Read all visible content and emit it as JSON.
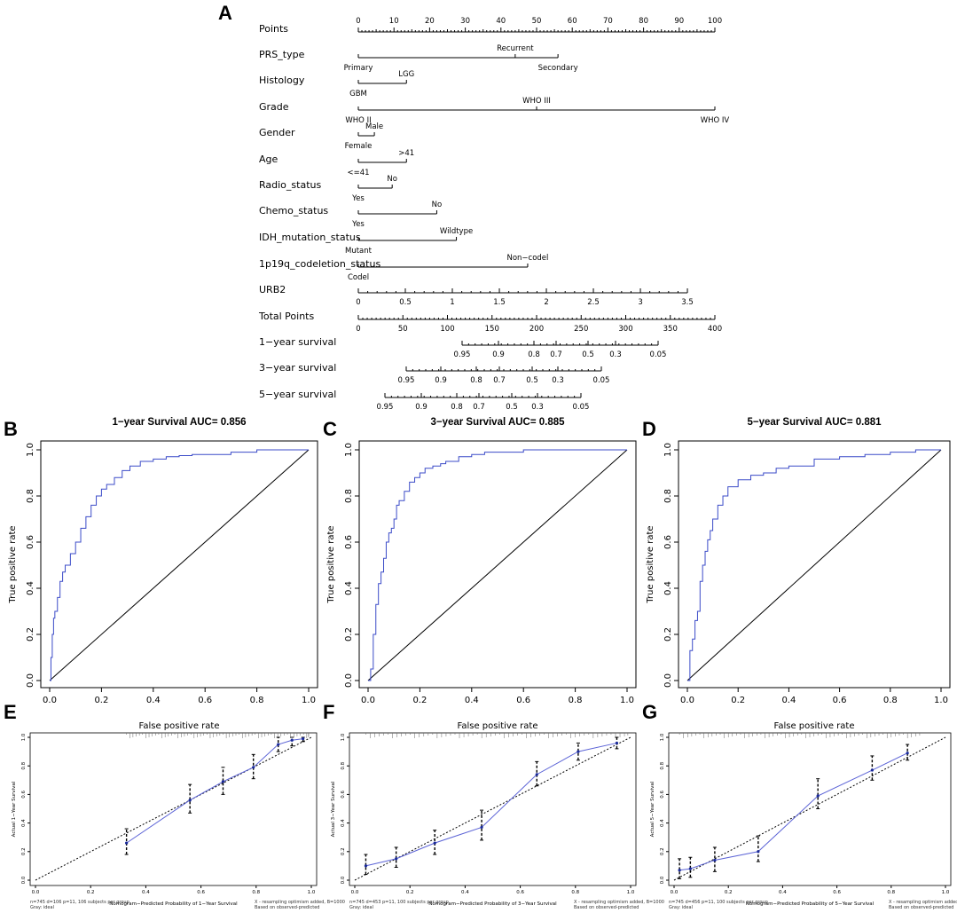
{
  "panel_letters": [
    "A",
    "B",
    "C",
    "D",
    "E",
    "F",
    "G"
  ],
  "nomogram": {
    "rows": [
      {
        "label": "Points",
        "ticks": [
          "0",
          "10",
          "20",
          "30",
          "40",
          "50",
          "60",
          "70",
          "80",
          "90",
          "100"
        ]
      },
      {
        "label": "PRS_type",
        "above": [
          "Recurrent"
        ],
        "below": [
          "Primary",
          "Secondary"
        ]
      },
      {
        "label": "Histology",
        "above": [
          "LGG"
        ],
        "below": [
          "GBM"
        ]
      },
      {
        "label": "Grade",
        "above": [
          "WHO III"
        ],
        "below": [
          "WHO II",
          "WHO IV"
        ]
      },
      {
        "label": "Gender",
        "above": [
          "Male"
        ],
        "below": [
          "Female"
        ]
      },
      {
        "label": "Age",
        "above": [
          ">41"
        ],
        "below": [
          "<=41"
        ]
      },
      {
        "label": "Radio_status",
        "above": [
          "No"
        ],
        "below": [
          "Yes"
        ]
      },
      {
        "label": "Chemo_status",
        "above": [
          "No"
        ],
        "below": [
          "Yes"
        ]
      },
      {
        "label": "IDH_mutation_status",
        "above": [
          "Wildtype"
        ],
        "below": [
          "Mutant"
        ]
      },
      {
        "label": "1p19q_codeletion_status",
        "above": [
          "Non−codel"
        ],
        "below": [
          "Codel"
        ]
      },
      {
        "label": "URB2",
        "ticks": [
          "0",
          "0.5",
          "1",
          "1.5",
          "2",
          "2.5",
          "3",
          "3.5"
        ]
      },
      {
        "label": "Total Points",
        "ticks": [
          "0",
          "50",
          "100",
          "150",
          "200",
          "250",
          "300",
          "350",
          "400"
        ]
      },
      {
        "label": "1−year survival",
        "ticks": [
          "0.95",
          "0.9",
          "0.8",
          "0.7",
          "0.5",
          "0.3",
          "0.05"
        ]
      },
      {
        "label": "3−year survival",
        "ticks": [
          "0.95",
          "0.9",
          "0.8",
          "0.7",
          "0.5",
          "0.3",
          "0.05"
        ]
      },
      {
        "label": "5−year survival",
        "ticks": [
          "0.95",
          "0.9",
          "0.8",
          "0.7",
          "0.5",
          "0.3",
          "0.05"
        ]
      }
    ]
  },
  "roc_common": {
    "xlabel": "False positive rate",
    "ylabel": "True positive rate",
    "ticks": [
      "0.0",
      "0.2",
      "0.4",
      "0.6",
      "0.8",
      "1.0"
    ]
  },
  "cal_common": {
    "xticks": [
      "0.0",
      "0.2",
      "0.4",
      "0.6",
      "0.8",
      "1.0"
    ],
    "yticks": [
      "0.0",
      "0.2",
      "0.4",
      "0.6",
      "0.8",
      "1.0"
    ],
    "right_note_1": "X - resampling optimism added, B=1000",
    "right_note_2": "Based on observed-predicted",
    "left_note_2": "Gray: ideal"
  },
  "chart_data": [
    {
      "type": "line",
      "panel": "B",
      "title": "1−year Survival AUC= 0.856",
      "xlabel": "False positive rate",
      "ylabel": "True positive rate",
      "xlim": [
        0,
        1
      ],
      "ylim": [
        0,
        1
      ],
      "x": [
        0,
        0.005,
        0.01,
        0.015,
        0.02,
        0.03,
        0.04,
        0.05,
        0.06,
        0.08,
        0.1,
        0.12,
        0.14,
        0.16,
        0.18,
        0.2,
        0.22,
        0.25,
        0.28,
        0.31,
        0.35,
        0.4,
        0.45,
        0.5,
        0.55,
        0.6,
        0.7,
        0.8,
        0.9,
        1.0
      ],
      "y": [
        0,
        0.1,
        0.2,
        0.27,
        0.3,
        0.36,
        0.43,
        0.47,
        0.5,
        0.55,
        0.6,
        0.66,
        0.71,
        0.76,
        0.8,
        0.83,
        0.85,
        0.88,
        0.91,
        0.93,
        0.95,
        0.96,
        0.97,
        0.975,
        0.98,
        0.98,
        0.99,
        1.0,
        1.0,
        1.0
      ]
    },
    {
      "type": "line",
      "panel": "C",
      "title": "3−year Survival AUC= 0.885",
      "xlabel": "False positive rate",
      "ylabel": "True positive rate",
      "xlim": [
        0,
        1
      ],
      "ylim": [
        0,
        1
      ],
      "x": [
        0,
        0.01,
        0.02,
        0.03,
        0.04,
        0.05,
        0.06,
        0.07,
        0.08,
        0.09,
        0.1,
        0.11,
        0.12,
        0.14,
        0.16,
        0.18,
        0.2,
        0.22,
        0.25,
        0.28,
        0.3,
        0.35,
        0.4,
        0.45,
        0.5,
        0.6,
        0.7,
        0.8,
        0.9,
        1.0
      ],
      "y": [
        0,
        0.05,
        0.2,
        0.33,
        0.42,
        0.47,
        0.53,
        0.6,
        0.64,
        0.66,
        0.7,
        0.76,
        0.78,
        0.82,
        0.86,
        0.88,
        0.9,
        0.92,
        0.93,
        0.94,
        0.95,
        0.97,
        0.98,
        0.99,
        0.99,
        1.0,
        1.0,
        1.0,
        1.0,
        1.0
      ]
    },
    {
      "type": "line",
      "panel": "D",
      "title": "5−year Survival AUC= 0.881",
      "xlabel": "False positive rate",
      "ylabel": "True positive rate",
      "xlim": [
        0,
        1
      ],
      "ylim": [
        0,
        1
      ],
      "x": [
        0,
        0.01,
        0.02,
        0.03,
        0.04,
        0.05,
        0.06,
        0.07,
        0.08,
        0.09,
        0.1,
        0.12,
        0.14,
        0.16,
        0.2,
        0.25,
        0.3,
        0.35,
        0.4,
        0.5,
        0.6,
        0.7,
        0.8,
        0.9,
        1.0
      ],
      "y": [
        0,
        0.13,
        0.18,
        0.26,
        0.3,
        0.43,
        0.5,
        0.56,
        0.61,
        0.65,
        0.7,
        0.76,
        0.8,
        0.84,
        0.87,
        0.89,
        0.9,
        0.92,
        0.93,
        0.96,
        0.97,
        0.98,
        0.99,
        1.0,
        1.0
      ]
    },
    {
      "type": "line",
      "panel": "E",
      "xlabel": "Nomogram−Predicted Probability of 1−Year Survival",
      "ylabel": "Actual 1−Year Survival",
      "xlim": [
        0,
        1
      ],
      "ylim": [
        0,
        1
      ],
      "left_note": "n=745 d=106 p=11, 106 subjects per group",
      "x": [
        0.33,
        0.56,
        0.68,
        0.79,
        0.88,
        0.93,
        0.97
      ],
      "y": [
        0.26,
        0.56,
        0.69,
        0.79,
        0.95,
        0.98,
        0.99
      ],
      "lower": [
        0.18,
        0.47,
        0.6,
        0.71,
        0.9,
        0.94,
        0.97
      ],
      "upper": [
        0.36,
        0.67,
        0.79,
        0.88,
        1.0,
        1.0,
        1.0
      ]
    },
    {
      "type": "line",
      "panel": "F",
      "xlabel": "Nomogram−Predicted Probability of 3−Year Survival",
      "ylabel": "Actual 3−Year Survival",
      "xlim": [
        0,
        1
      ],
      "ylim": [
        0,
        1
      ],
      "left_note": "n=745 d=453 p=11, 100 subjects per group",
      "x": [
        0.04,
        0.15,
        0.29,
        0.46,
        0.66,
        0.81,
        0.95
      ],
      "y": [
        0.1,
        0.15,
        0.26,
        0.37,
        0.74,
        0.9,
        0.96
      ],
      "lower": [
        0.04,
        0.09,
        0.18,
        0.28,
        0.66,
        0.84,
        0.92
      ],
      "upper": [
        0.18,
        0.23,
        0.35,
        0.49,
        0.83,
        0.96,
        1.0
      ]
    },
    {
      "type": "line",
      "panel": "G",
      "xlabel": "Nomogram−Predicted Probability of 5−Year Survival",
      "ylabel": "Actual 5−Year Survival",
      "xlim": [
        0,
        1
      ],
      "ylim": [
        0,
        1
      ],
      "left_note": "n=745 d=456 p=11, 100 subjects per group",
      "x": [
        0.02,
        0.06,
        0.15,
        0.31,
        0.53,
        0.73,
        0.86
      ],
      "y": [
        0.07,
        0.08,
        0.14,
        0.2,
        0.59,
        0.77,
        0.89
      ],
      "lower": [
        0.01,
        0.02,
        0.06,
        0.13,
        0.5,
        0.7,
        0.84
      ],
      "upper": [
        0.15,
        0.16,
        0.23,
        0.31,
        0.71,
        0.87,
        0.95
      ]
    }
  ]
}
